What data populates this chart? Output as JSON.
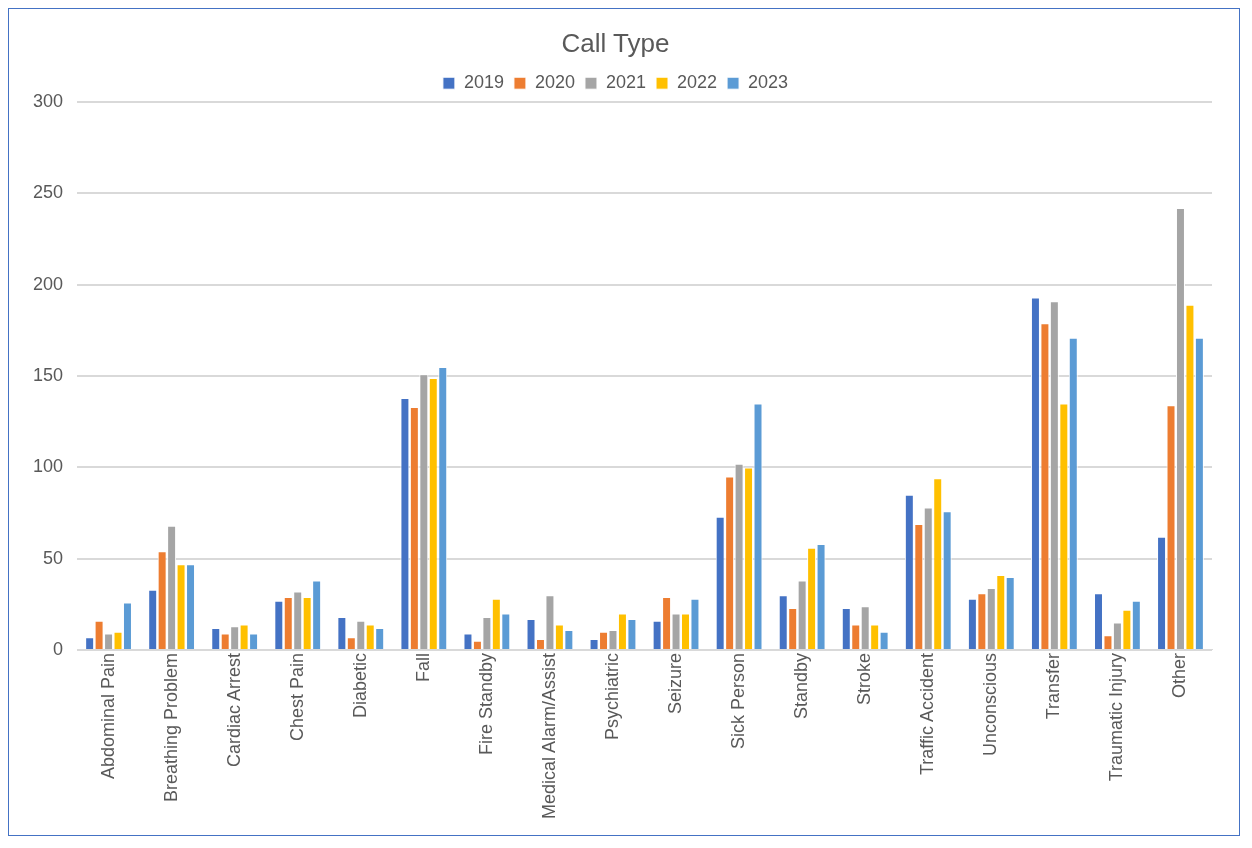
{
  "chart_data": {
    "type": "bar",
    "title": "Call Type",
    "categories": [
      "Abdominal Pain",
      "Breathing Problem",
      "Cardiac Arrest",
      "Chest Pain",
      "Diabetic",
      "Fall",
      "Fire Standby",
      "Medical Alarm/Assist",
      "Psychiatric",
      "Seizure",
      "Sick Person",
      "Standby",
      "Stroke",
      "Traffic Accident",
      "Unconscious",
      "Transfer",
      "Traumatic Injury",
      "Other"
    ],
    "series": [
      {
        "name": "2019",
        "color": "#4472c4",
        "values": [
          7,
          33,
          12,
          27,
          18,
          138,
          9,
          17,
          6,
          16,
          73,
          30,
          23,
          85,
          28,
          193,
          31,
          62
        ]
      },
      {
        "name": "2020",
        "color": "#ed7d31",
        "values": [
          16,
          54,
          9,
          29,
          7,
          133,
          5,
          6,
          10,
          29,
          95,
          23,
          14,
          69,
          31,
          179,
          8,
          134
        ]
      },
      {
        "name": "2021",
        "color": "#a5a5a5",
        "values": [
          9,
          68,
          13,
          32,
          16,
          151,
          18,
          30,
          11,
          20,
          102,
          38,
          24,
          78,
          34,
          191,
          15,
          242
        ]
      },
      {
        "name": "2022",
        "color": "#ffc000",
        "values": [
          10,
          47,
          14,
          29,
          14,
          149,
          28,
          14,
          20,
          20,
          100,
          56,
          14,
          94,
          41,
          135,
          22,
          189
        ]
      },
      {
        "name": "2023",
        "color": "#5b9bd5",
        "values": [
          26,
          47,
          9,
          38,
          12,
          155,
          20,
          11,
          17,
          28,
          135,
          58,
          10,
          76,
          40,
          171,
          27,
          171
        ]
      }
    ],
    "ylim": [
      0,
      300
    ],
    "yticks": [
      0,
      50,
      100,
      150,
      200,
      250,
      300
    ],
    "grid": "y",
    "legend": "top"
  }
}
